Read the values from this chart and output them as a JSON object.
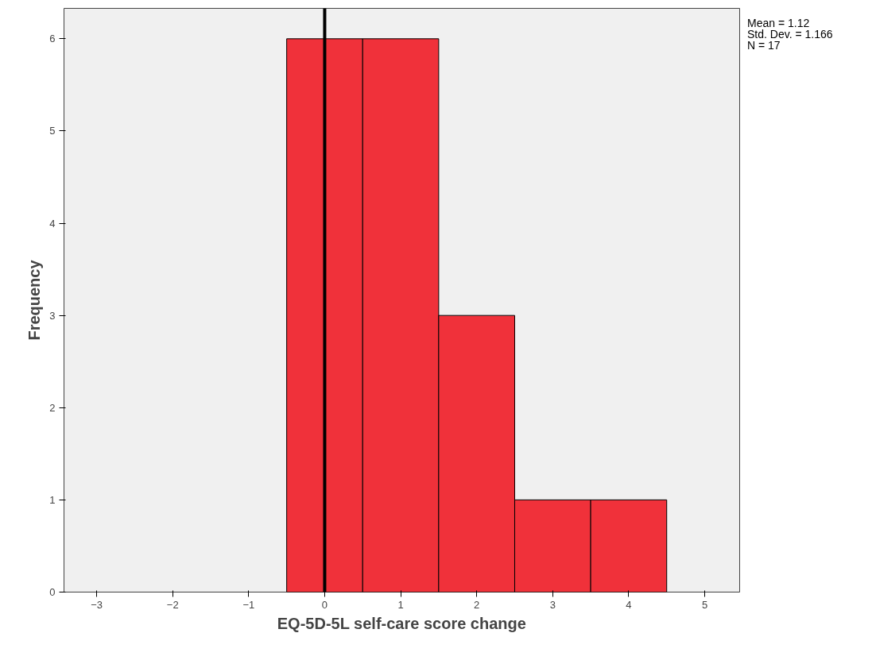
{
  "chart_data": {
    "type": "histogram",
    "xlabel": "EQ-5D-5L self-care score change",
    "ylabel": "Frequency",
    "bins": [
      -0.5,
      0.5,
      1.5,
      2.5,
      3.5,
      4.5
    ],
    "values": [
      6,
      6,
      3,
      1,
      1
    ],
    "color": "#f0313a",
    "xlim": [
      -3.43,
      5.46
    ],
    "ylim": [
      0,
      6.33
    ],
    "xticks": [
      -3,
      -2,
      -1,
      0,
      1,
      2,
      3,
      4,
      5
    ],
    "yticks": [
      0,
      1,
      2,
      3,
      4,
      5,
      6
    ],
    "grid": false,
    "ref_lines": [
      {
        "axis": "x",
        "value": 0,
        "color": "#000000"
      }
    ],
    "annotations": [
      "Mean = 1.12",
      "Std. Dev. = 1.166",
      "N = 17"
    ]
  }
}
